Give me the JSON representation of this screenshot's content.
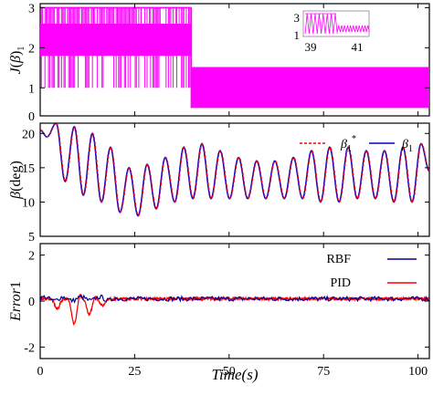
{
  "figure": {
    "xlabel": "Time(s)",
    "xticks": [
      0,
      25,
      50,
      75,
      100
    ],
    "xlim": [
      0,
      103
    ]
  },
  "chart_data": [
    {
      "type": "line",
      "panel": "top",
      "ylabel": "J(β)1",
      "ylim": [
        0.3,
        3.1
      ],
      "yticks": [
        0,
        1,
        2,
        3
      ],
      "color": "#ff00ff",
      "segments": [
        {
          "x_range": [
            0,
            40
          ],
          "level_low": 1,
          "level_high": 3,
          "band": [
            1.8,
            2.6
          ]
        },
        {
          "x_range": [
            40,
            103
          ],
          "level_low": 0.5,
          "level_high": 1.5,
          "band": [
            0.5,
            1.5
          ]
        }
      ],
      "inset": {
        "x_range": [
          39,
          41
        ],
        "xticks": [
          39,
          41
        ],
        "yticks": [
          1,
          3
        ],
        "switch_at": 40
      }
    },
    {
      "type": "line",
      "panel": "middle",
      "ylabel": "β(deg)",
      "ylim": [
        5,
        21.5
      ],
      "yticks": [
        5,
        10,
        15,
        20
      ],
      "legend_position": "top-right",
      "series": [
        {
          "name": "β1*",
          "style": "dashed",
          "color": "#ff0000"
        },
        {
          "name": "β1",
          "style": "solid",
          "color": "#0000cc"
        }
      ],
      "oscillation": {
        "peaks_x": [
          4.2,
          9.0,
          13.8,
          18.6,
          23.5,
          28.3,
          33.1,
          38.0,
          42.8,
          47.6,
          52.5,
          57.3,
          62.1,
          67.0,
          71.8,
          76.6,
          81.5,
          86.3,
          91.1,
          96.0,
          100.8
        ],
        "peaks_y": [
          21.5,
          21.0,
          20.0,
          18.0,
          15.0,
          15.5,
          16.5,
          18.0,
          18.5,
          17.5,
          16.5,
          16.0,
          16.0,
          16.5,
          17.5,
          18.0,
          18.0,
          17.5,
          17.5,
          18.0,
          18.5
        ],
        "troughs_x": [
          1.8,
          6.6,
          11.4,
          16.2,
          21.1,
          25.9,
          30.7,
          35.6,
          40.4,
          45.2,
          50.1,
          54.9,
          59.7,
          64.6,
          69.4,
          74.2,
          79.1,
          83.9,
          88.7,
          93.6,
          98.4,
          103.0
        ],
        "troughs_y": [
          19.5,
          13.0,
          11.0,
          10.0,
          8.5,
          8.0,
          9.0,
          10.0,
          10.5,
          10.5,
          10.5,
          10.5,
          10.5,
          10.5,
          10.5,
          10.0,
          10.0,
          10.5,
          10.5,
          10.0,
          10.0,
          14.5
        ]
      }
    },
    {
      "type": "line",
      "panel": "bottom",
      "ylabel": "Error1",
      "ylim": [
        -2.5,
        2.5
      ],
      "yticks": [
        -2,
        0,
        2
      ],
      "legend_position": "top-right",
      "series": [
        {
          "name": "RBF",
          "color": "#000099",
          "noise_amplitude": 0.1,
          "mean": 0.1
        },
        {
          "name": "PID",
          "color": "#ff0000",
          "noise_amplitude": 0.05,
          "mean": 0.1,
          "dips": [
            {
              "x": 4.5,
              "y": -0.35
            },
            {
              "x": 9.0,
              "y": -1.0
            },
            {
              "x": 13.0,
              "y": -0.6
            },
            {
              "x": 16.5,
              "y": -0.2
            }
          ],
          "bumps": [
            {
              "x": 10.5,
              "y": 0.3
            },
            {
              "x": 14.5,
              "y": 0.25
            }
          ]
        }
      ]
    }
  ]
}
